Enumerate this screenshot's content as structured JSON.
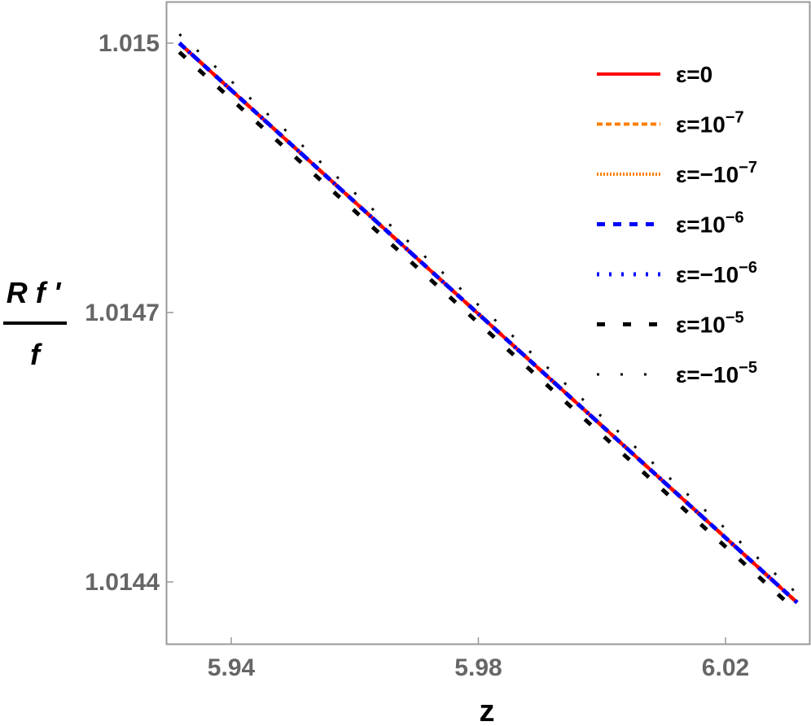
{
  "chart_data": {
    "type": "line",
    "title": "",
    "xlabel": "z",
    "ylabel": "R f' / f",
    "ylabel_parts": {
      "numerator": "R f '",
      "denominator": "f"
    },
    "xlim": [
      5.9238,
      6.0349
    ],
    "ylim": [
      1.01437,
      1.015047
    ],
    "xticks": [
      5.94,
      5.98,
      6.02
    ],
    "xtick_labels": [
      "5.94",
      "5.98",
      "6.02"
    ],
    "yticks": [
      1.015,
      1.0147,
      1.0144
    ],
    "ytick_labels": [
      "1.015",
      "1.0147",
      "1.0144"
    ],
    "grid": false,
    "legend_position": "upper right (inside)",
    "series": [
      {
        "name": "ε=0",
        "label_base": "ε=0",
        "label_exp": "",
        "color": "#ff0000",
        "style": "solid",
        "x": [
          5.9316,
          6.0316
        ],
        "y": [
          1.015,
          1.014377
        ]
      },
      {
        "name": "ε=10^-7",
        "label_base": "ε=10",
        "label_exp": "−7",
        "color": "#ff7f00",
        "style": "dashed",
        "x": [
          5.9316,
          6.0316
        ],
        "y": [
          1.015,
          1.014377
        ]
      },
      {
        "name": "ε=-10^-7",
        "label_base": "ε=−10",
        "label_exp": "−7",
        "color": "#ff7f00",
        "style": "dotted",
        "x": [
          5.9316,
          6.0316
        ],
        "y": [
          1.015,
          1.014377
        ]
      },
      {
        "name": "ε=10^-6",
        "label_base": "ε=10",
        "label_exp": "−6",
        "color": "#0000ff",
        "style": "dashed",
        "x": [
          5.9316,
          6.0316
        ],
        "y": [
          1.015,
          1.014377
        ]
      },
      {
        "name": "ε=-10^-6",
        "label_base": "ε=−10",
        "label_exp": "−6",
        "color": "#0000ff",
        "style": "dotted",
        "x": [
          5.9316,
          6.0316
        ],
        "y": [
          1.015,
          1.014377
        ]
      },
      {
        "name": "ε=10^-5",
        "label_base": "ε=10",
        "label_exp": "−5",
        "color": "#000000",
        "style": "long-dashed",
        "x": [
          5.9316,
          6.0316
        ],
        "y": [
          1.01499,
          1.014367
        ]
      },
      {
        "name": "ε=-10^-5",
        "label_base": "ε=−10",
        "label_exp": "−5",
        "color": "#000000",
        "style": "sparse-dotted",
        "x": [
          5.9316,
          6.0316
        ],
        "y": [
          1.01501,
          1.014387
        ]
      }
    ]
  }
}
